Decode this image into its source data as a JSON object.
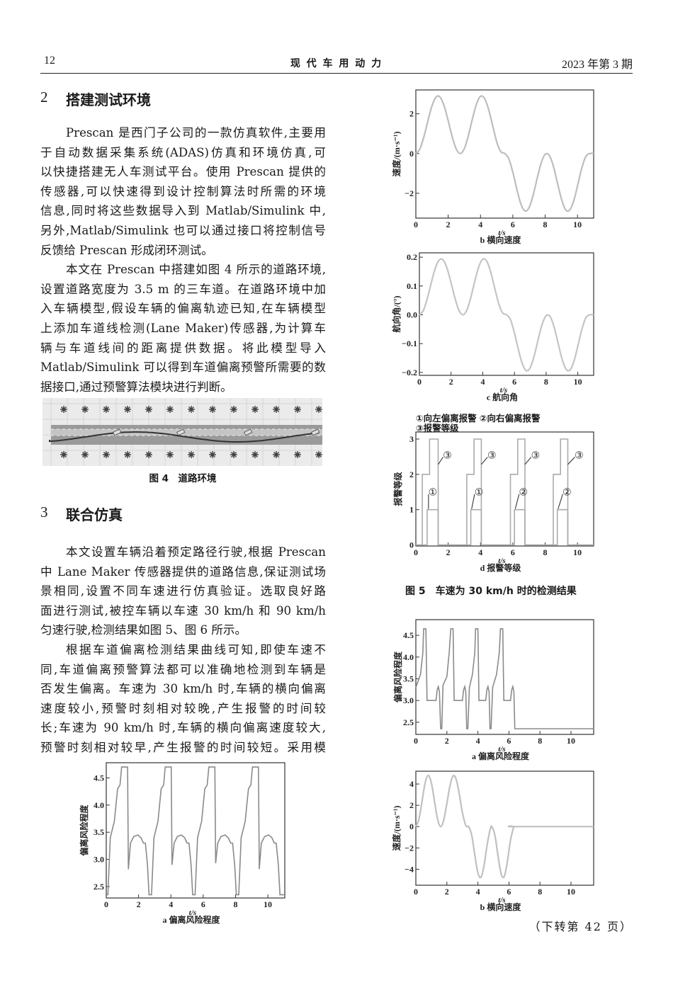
{
  "header": {
    "page_number": "12",
    "journal": "现 代 车 用 动 力",
    "issue": "2023 年第 3 期"
  },
  "section2": {
    "number": "2",
    "title": "搭建测试环境",
    "paragraphs": [
      [
        "Prescan 是西门子公司的一款仿真软件,主要用",
        "于自动数据采集系统(ADAS)仿真和环境仿真,可",
        "以快捷搭建无人车测试平台。使用 Prescan 提供的",
        "传感器,可以快速得到设计控制算法时所需的环境",
        "信息,同时将这些数据导入到 Matlab/Simulink 中,",
        "另外,Matlab/Simulink 也可以通过接口将控制信号",
        "反馈给 Prescan 形成闭环测试。"
      ],
      [
        "本文在 Prescan 中搭建如图 4 所示的道路环境,",
        "设置道路宽度为 3.5 m 的三车道。在道路环境中加",
        "入车辆模型,假设车辆的偏离轨迹已知,在车辆模型",
        "上添加车道线检测(Lane Maker)传感器,为计算车",
        "辆与车道线间的距离提供数据。将此模型导入",
        "Matlab/Simulink 可以得到车道偏离预警所需要的数",
        "据接口,通过预警算法模块进行判断。"
      ]
    ]
  },
  "figure4": {
    "caption": "图 4　道路环境"
  },
  "section3": {
    "number": "3",
    "title": "联合仿真",
    "paragraphs": [
      [
        "本文设置车辆沿着预定路径行驶,根据 Prescan",
        "中 Lane Maker 传感器提供的道路信息,保证测试场",
        "景相同,设置不同车速进行仿真验证。选取良好路",
        "面进行测试,被控车辆以车速 30 km/h 和 90 km/h",
        "匀速行驶,检测结果如图 5、图 6 所示。"
      ],
      [
        "根据车道偏离检测结果曲线可知,即使车速不",
        "同,车道偏离预警算法都可以准确地检测到车辆是",
        "否发生偏离。车速为 30 km/h 时,车辆的横向偏离",
        "速度较小,预警时刻相对较晚,产生报警的时间较",
        "长;车速为 90 km/h 时,车辆的横向偏离速度较大,",
        "预警时刻相对较早,产生报警的时间较短。采用模"
      ]
    ]
  },
  "figure5": {
    "caption": "图 5　车速为 30 km/h 时的检测结果",
    "legend": [
      "①向左偏离报警 ②向右偏离报警",
      "③报警等级"
    ]
  },
  "footer": {
    "continued": "（下转第 42 页）"
  },
  "chart_data": [
    {
      "id": "fig5b",
      "type": "line",
      "title": "b 横向速度",
      "xlabel": "t/s",
      "ylabel": "速度/(m·s⁻¹)",
      "xlim": [
        0,
        11
      ],
      "ylim": [
        -3.25,
        3.2
      ],
      "xticks": [
        0,
        2,
        4,
        6,
        8,
        10
      ],
      "yticks": [
        -2,
        0,
        2
      ],
      "yticklabels": [
        "−2",
        "0",
        "2"
      ],
      "grid": false,
      "line_color": "#bdbdbd",
      "x": [
        0,
        0.25,
        0.5,
        0.75,
        1,
        1.25,
        1.5,
        1.75,
        2,
        2.25,
        2.5,
        2.75,
        3,
        3.25,
        3.5,
        3.75,
        4,
        4.25,
        4.5,
        4.75,
        5,
        5.25,
        5.5,
        5.75,
        6,
        6.25,
        6.5,
        6.75,
        7,
        7.25,
        7.5,
        7.75,
        8,
        8.25,
        8.5,
        8.75,
        9,
        9.25,
        9.5,
        9.75,
        10,
        10.25,
        10.5,
        10.75,
        11
      ],
      "y": [
        0,
        0.23,
        0.85,
        1.66,
        2.4,
        2.84,
        2.84,
        2.4,
        1.66,
        0.85,
        0.23,
        0,
        0.25,
        0.91,
        1.75,
        2.49,
        2.88,
        2.77,
        2.22,
        1.41,
        0.6,
        0.1,
        0,
        -0.26,
        -0.94,
        -1.8,
        -2.54,
        -2.89,
        -2.73,
        -2.12,
        -1.27,
        -0.49,
        -0.04,
        -0.09,
        -0.62,
        -1.45,
        -2.27,
        -2.81,
        -2.86,
        -2.42,
        -1.63,
        -0.78,
        -0.17,
        0,
        0
      ]
    },
    {
      "id": "fig5c",
      "type": "line",
      "title": "c 航向角",
      "xlabel": "t/s",
      "ylabel": "航向角/(°)",
      "xlim": [
        0,
        11
      ],
      "ylim": [
        -0.21,
        0.215
      ],
      "xticks": [
        0,
        2,
        4,
        6,
        8,
        10
      ],
      "yticks": [
        -0.2,
        -0.1,
        0,
        0.1,
        0.2
      ],
      "yticklabels": [
        "−0.2",
        "−0.1",
        "0.0",
        "0.1",
        "0.2"
      ],
      "grid": false,
      "line_color": "#c4c4c4",
      "x": [
        0,
        0.25,
        0.5,
        0.75,
        1,
        1.25,
        1.5,
        1.75,
        2,
        2.25,
        2.5,
        2.75,
        3,
        3.25,
        3.5,
        3.75,
        4,
        4.25,
        4.5,
        4.75,
        5,
        5.25,
        5.5,
        5.75,
        6,
        6.25,
        6.5,
        6.75,
        7,
        7.25,
        7.5,
        7.75,
        8,
        8.25,
        8.5,
        8.75,
        9,
        9.25,
        9.5,
        9.75,
        10,
        10.25,
        10.5,
        10.75,
        11
      ],
      "y": [
        0,
        0.015,
        0.057,
        0.111,
        0.161,
        0.19,
        0.19,
        0.161,
        0.111,
        0.057,
        0.015,
        0,
        0.017,
        0.061,
        0.117,
        0.167,
        0.193,
        0.186,
        0.149,
        0.094,
        0.04,
        0.007,
        0,
        -0.017,
        -0.063,
        -0.121,
        -0.17,
        -0.194,
        -0.183,
        -0.142,
        -0.085,
        -0.033,
        -0.003,
        -0.006,
        -0.042,
        -0.097,
        -0.152,
        -0.188,
        -0.192,
        -0.162,
        -0.109,
        -0.052,
        -0.011,
        0,
        0
      ]
    },
    {
      "id": "fig5d",
      "type": "line",
      "title": "d 报警等级",
      "xlabel": "t/s",
      "ylabel": "报警等级",
      "xlim": [
        0,
        11
      ],
      "ylim": [
        -0.03,
        3.2
      ],
      "xticks": [
        0,
        2,
        4,
        6,
        8,
        10
      ],
      "yticks": [
        0,
        1,
        2,
        3
      ],
      "yticklabels": [
        "0",
        "1",
        "2",
        "3"
      ],
      "grid": false,
      "line_color": "#ababab",
      "series": [
        {
          "name": "③报警等级",
          "step": true,
          "x": [
            0,
            0.4,
            0.4,
            0.85,
            0.85,
            1.38,
            1.38,
            3.15,
            3.15,
            3.6,
            3.6,
            4.05,
            4.05,
            5.85,
            5.85,
            6.3,
            6.3,
            6.75,
            6.75,
            8.5,
            8.5,
            8.95,
            8.95,
            9.4,
            9.4,
            11
          ],
          "y": [
            0,
            0,
            2,
            2,
            3,
            3,
            0,
            0,
            2,
            2,
            3,
            3,
            0,
            0,
            2,
            2,
            3,
            3,
            0,
            0,
            2,
            2,
            3,
            3,
            0,
            0
          ]
        },
        {
          "name": "①向左偏离报警 / ②向右偏离报警",
          "step": true,
          "x": [
            0,
            0.7,
            0.7,
            1.38,
            1.38,
            3.4,
            3.4,
            4.05,
            4.05,
            6.1,
            6.1,
            6.75,
            6.75,
            8.75,
            8.75,
            9.4,
            9.4,
            11
          ],
          "y": [
            0,
            0,
            1,
            1,
            0,
            0,
            1,
            1,
            0,
            0,
            1,
            1,
            0,
            0,
            1,
            1,
            0,
            0
          ]
        }
      ],
      "annotations": [
        {
          "text": "③",
          "x": 1.95,
          "y": 2.55,
          "from": [
            1.38,
            2.28
          ]
        },
        {
          "text": "①",
          "x": 1.05,
          "y": 1.5,
          "from": [
            0.78,
            1.02
          ]
        },
        {
          "text": "③",
          "x": 4.7,
          "y": 2.55,
          "from": [
            4.05,
            2.28
          ]
        },
        {
          "text": "①",
          "x": 3.9,
          "y": 1.5,
          "from": [
            3.45,
            1.02
          ]
        },
        {
          "text": "③",
          "x": 7.4,
          "y": 2.55,
          "from": [
            6.75,
            2.28
          ]
        },
        {
          "text": "②",
          "x": 6.65,
          "y": 1.5,
          "from": [
            6.15,
            1.02
          ]
        },
        {
          "text": "③",
          "x": 10.1,
          "y": 2.55,
          "from": [
            9.4,
            2.28
          ]
        },
        {
          "text": "②",
          "x": 9.35,
          "y": 1.5,
          "from": [
            8.8,
            1.02
          ]
        }
      ]
    },
    {
      "id": "fig5a",
      "type": "line",
      "title": "a 偏离风险程度",
      "xlabel": "t/s",
      "ylabel": "偏离风险程度",
      "xlim": [
        0,
        11.05
      ],
      "ylim": [
        2.29,
        4.78
      ],
      "xticks": [
        0,
        2,
        4,
        6,
        8,
        10
      ],
      "yticks": [
        2.5,
        3.0,
        3.5,
        4.0,
        4.5
      ],
      "yticklabels": [
        "2.5",
        "3.0",
        "3.5",
        "4.0",
        "4.5"
      ],
      "grid": false,
      "line_color": "#8a8a8a",
      "x": [
        0,
        0.1,
        0.25,
        0.5,
        0.7,
        0.85,
        0.95,
        1.32,
        1.37,
        1.5,
        1.7,
        1.95,
        2.15,
        2.3,
        2.42,
        2.55,
        2.65,
        2.8,
        2.95,
        3.2,
        3.4,
        3.55,
        3.65,
        4.02,
        4.07,
        4.2,
        4.4,
        4.65,
        4.85,
        5.0,
        5.12,
        5.25,
        5.35,
        5.5,
        5.65,
        5.9,
        6.1,
        6.25,
        6.35,
        6.72,
        6.77,
        6.9,
        7.1,
        7.35,
        7.55,
        7.7,
        7.82,
        7.95,
        8.05,
        8.2,
        8.35,
        8.6,
        8.8,
        8.95,
        9.05,
        9.42,
        9.47,
        9.6,
        9.8,
        10.05,
        10.25,
        10.4,
        10.52,
        10.65,
        10.75,
        11
      ],
      "y": [
        2.35,
        2.35,
        3.4,
        3.7,
        4.3,
        4.37,
        4.7,
        4.7,
        2.82,
        3.3,
        3.42,
        3.45,
        3.4,
        3.3,
        3.3,
        2.9,
        2.35,
        2.35,
        3.4,
        3.7,
        4.3,
        4.37,
        4.7,
        4.7,
        2.9,
        3.3,
        3.42,
        3.45,
        3.4,
        3.3,
        3.3,
        2.9,
        2.35,
        2.35,
        3.4,
        3.7,
        4.3,
        4.37,
        4.7,
        4.7,
        2.93,
        3.3,
        3.42,
        3.45,
        3.4,
        3.3,
        3.3,
        2.9,
        2.35,
        2.35,
        3.4,
        3.7,
        4.3,
        4.37,
        4.7,
        4.7,
        2.82,
        3.3,
        3.42,
        3.45,
        3.4,
        3.3,
        3.3,
        2.9,
        2.35,
        2.35
      ]
    },
    {
      "id": "fig6a",
      "type": "line",
      "title": "a 偏离风险程度",
      "xlabel": "t/s",
      "ylabel": "偏离风险程度",
      "xlim": [
        0,
        11.46
      ],
      "ylim": [
        2.22,
        4.86
      ],
      "xticks": [
        0,
        2,
        4,
        6,
        8,
        10
      ],
      "yticks": [
        2.5,
        3.0,
        3.5,
        4.0,
        4.5
      ],
      "yticklabels": [
        "2.5",
        "3.0",
        "3.5",
        "4.0",
        "4.5"
      ],
      "grid": false,
      "line_color": "#8a8a8a",
      "x": [
        0,
        0.05,
        0.3,
        0.45,
        0.5,
        0.65,
        0.72,
        1.3,
        1.38,
        1.45,
        1.52,
        1.6,
        1.67,
        1.75,
        2.0,
        2.15,
        2.25,
        2.4,
        2.47,
        3.0,
        3.08,
        3.15,
        3.22,
        3.28,
        3.35,
        3.45,
        3.65,
        3.8,
        3.85,
        4.0,
        4.07,
        4.5,
        4.58,
        4.65,
        4.72,
        4.78,
        4.85,
        4.95,
        5.2,
        5.38,
        5.45,
        5.6,
        5.67,
        6.1,
        6.18,
        6.25,
        6.32,
        6.38,
        11.46
      ],
      "y": [
        3.3,
        3.35,
        3.6,
        4.1,
        4.65,
        4.65,
        3.0,
        3.0,
        3.25,
        3.32,
        3.2,
        2.35,
        2.35,
        3.35,
        3.55,
        4.1,
        4.65,
        4.65,
        3.0,
        3.0,
        3.25,
        3.32,
        3.2,
        2.35,
        2.35,
        3.3,
        3.6,
        4.1,
        4.65,
        4.65,
        3.0,
        3.0,
        3.25,
        3.32,
        3.2,
        2.35,
        2.35,
        3.3,
        3.6,
        4.1,
        4.65,
        4.65,
        3.0,
        3.0,
        3.25,
        3.32,
        3.2,
        2.35,
        2.35
      ]
    },
    {
      "id": "fig6b",
      "type": "line",
      "title": "b 横向速度",
      "xlabel": "t/s",
      "ylabel": "速度/(m·s⁻¹)",
      "xlim": [
        0,
        11.46
      ],
      "ylim": [
        -5.5,
        5.2
      ],
      "xticks": [
        0,
        2,
        4,
        6,
        8,
        10
      ],
      "yticks": [
        -4,
        -2,
        0,
        2,
        4
      ],
      "yticklabels": [
        "−4",
        "−2",
        "0",
        "2",
        "4"
      ],
      "grid": false,
      "line_color": "#c0c0c0",
      "x": [
        0,
        0.2,
        0.4,
        0.6,
        0.8,
        1.0,
        1.2,
        1.4,
        1.6,
        1.8,
        2.0,
        2.2,
        2.4,
        2.6,
        2.8,
        3.0,
        3.2,
        3.3,
        3.4,
        3.6,
        3.8,
        4.0,
        4.2,
        4.4,
        4.6,
        4.8,
        4.9,
        5.1,
        5.3,
        5.5,
        5.7,
        5.9,
        6.1,
        6.3,
        6.35,
        11.46
      ],
      "y": [
        0,
        0.7,
        2.4,
        4.1,
        4.8,
        4.1,
        2.4,
        0.7,
        0,
        0.63,
        2.18,
        3.84,
        4.76,
        4.44,
        3.06,
        1.33,
        0.17,
        0,
        0,
        -0.79,
        -2.65,
        -4.34,
        -4.75,
        -3.6,
        -1.66,
        -0.21,
        0,
        -0.85,
        -2.79,
        -4.46,
        -4.67,
        -3.29,
        -1.27,
        -0.06,
        0,
        0
      ]
    }
  ]
}
